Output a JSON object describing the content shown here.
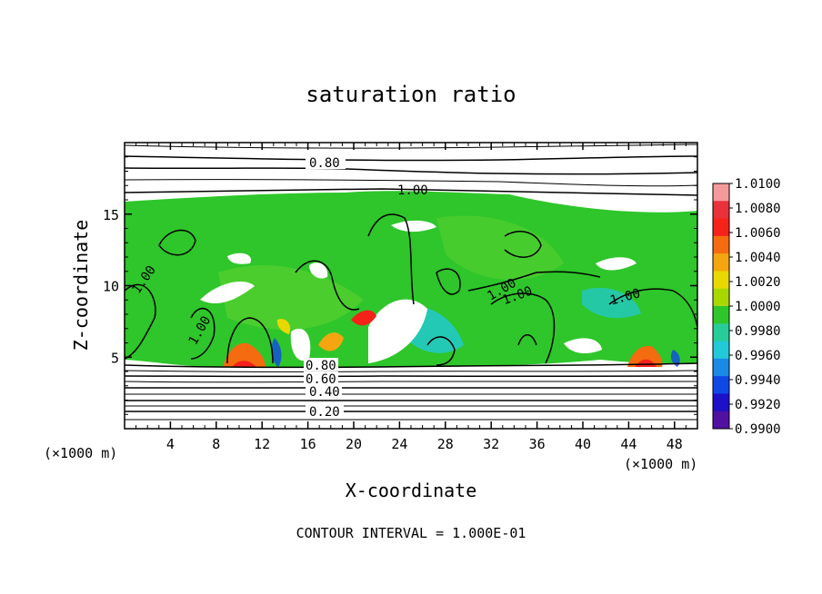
{
  "chart_data": {
    "type": "heatmap",
    "title": "saturation ratio",
    "xlabel": "X-coordinate",
    "ylabel": "Z-coordinate",
    "x_unit_left": "(×1000 m)",
    "x_unit_right": "(×1000 m)",
    "xlim": [
      0,
      50
    ],
    "ylim": [
      0,
      20
    ],
    "xticks": [
      "4",
      "8",
      "12",
      "16",
      "20",
      "24",
      "28",
      "32",
      "36",
      "40",
      "44",
      "48"
    ],
    "yticks": [
      "5",
      "10",
      "15"
    ],
    "footer": "CONTOUR INTERVAL = 1.000E-01",
    "colorbar": {
      "labels": [
        "1.0100",
        "1.0080",
        "1.0060",
        "1.0040",
        "1.0020",
        "1.0000",
        "0.9980",
        "0.9960",
        "0.9940",
        "0.9920",
        "0.9900"
      ],
      "colors": [
        "#f49a9a",
        "#e8313a",
        "#f5221a",
        "#f46b10",
        "#f4a510",
        "#e8d800",
        "#a8d800",
        "#2ec62a",
        "#28cc98",
        "#22c9d8",
        "#1a8ae6",
        "#1048e6",
        "#1c10c8",
        "#5010a0"
      ]
    },
    "contour_labels": [
      "0.80",
      "1.00",
      "1.00",
      "1.00",
      "1.00",
      "1.00",
      "1.00",
      "0.80",
      "0.60",
      "0.40",
      "0.20"
    ],
    "field_regions": {
      "saturated_layer_z": [
        4.5,
        16.5
      ],
      "warm_spots_x": [
        11,
        18,
        20,
        45
      ],
      "fill_color": "#2ec62a"
    }
  }
}
